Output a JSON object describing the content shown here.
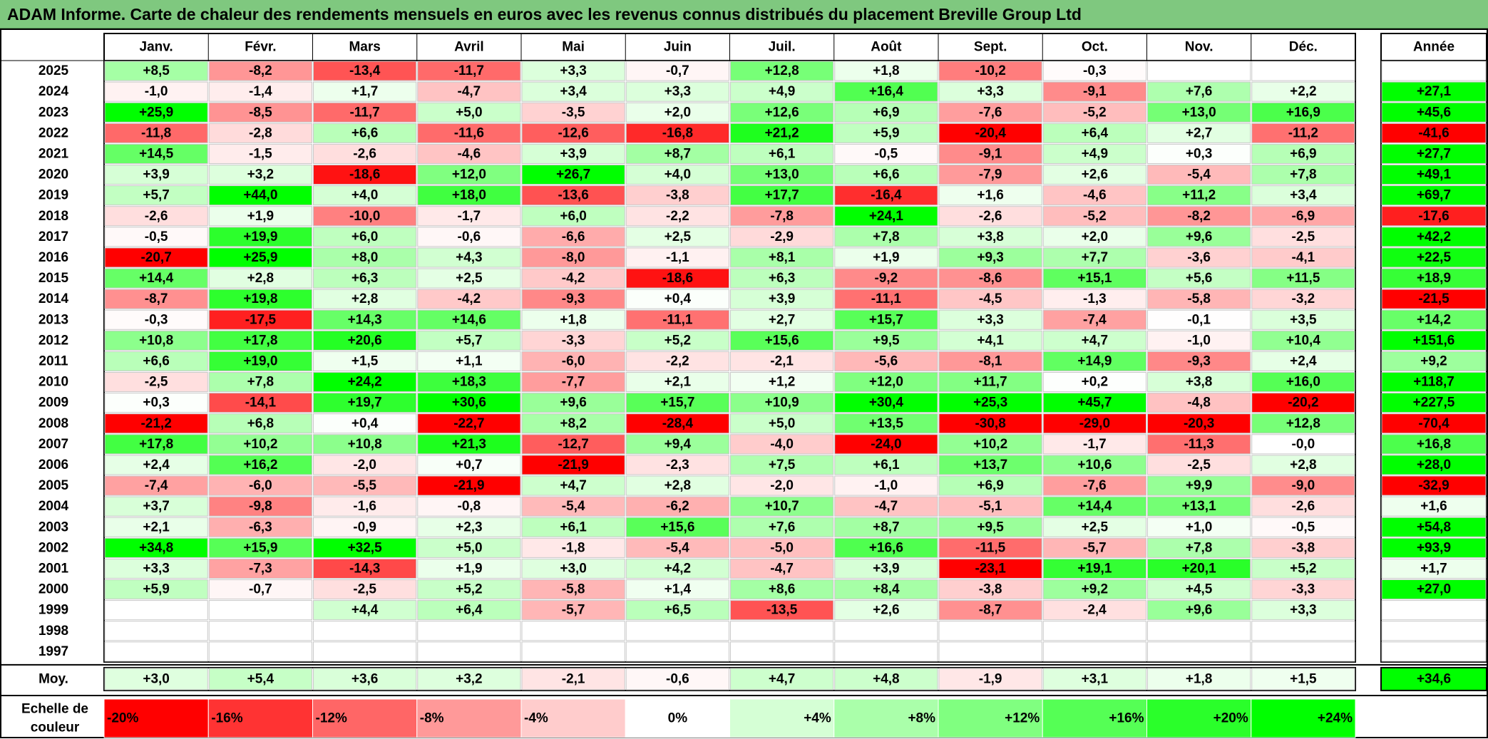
{
  "title": "ADAM Informe. Carte de chaleur des rendements mensuels en euros avec les revenus connus distribués du placement Breville Group Ltd",
  "colors": {
    "title_bar": "#7fc87f",
    "max_green": "#00ff00",
    "max_red": "#ff0000",
    "neutral": "#ffffff"
  },
  "chart_data": {
    "type": "heatmap",
    "color_scale_min": -20,
    "color_scale_max": 24,
    "months": [
      "Janv.",
      "Févr.",
      "Mars",
      "Avril",
      "Mai",
      "Juin",
      "Juil.",
      "Août",
      "Sept.",
      "Oct.",
      "Nov.",
      "Déc."
    ],
    "year_header": "Année",
    "rows": [
      {
        "year": "2025",
        "values": [
          "+8,5",
          "-8,2",
          "-13,4",
          "-11,7",
          "+3,3",
          "-0,7",
          "+12,8",
          "+1,8",
          "-10,2",
          "-0,3",
          "",
          ""
        ],
        "annual": ""
      },
      {
        "year": "2024",
        "values": [
          "-1,0",
          "-1,4",
          "+1,7",
          "-4,7",
          "+3,4",
          "+3,3",
          "+4,9",
          "+16,4",
          "+3,3",
          "-9,1",
          "+7,6",
          "+2,2"
        ],
        "annual": "+27,1"
      },
      {
        "year": "2023",
        "values": [
          "+25,9",
          "-8,5",
          "-11,7",
          "+5,0",
          "-3,5",
          "+2,0",
          "+12,6",
          "+6,9",
          "-7,6",
          "-5,2",
          "+13,0",
          "+16,9"
        ],
        "annual": "+45,6"
      },
      {
        "year": "2022",
        "values": [
          "-11,8",
          "-2,8",
          "+6,6",
          "-11,6",
          "-12,6",
          "-16,8",
          "+21,2",
          "+5,9",
          "-20,4",
          "+6,4",
          "+2,7",
          "-11,2"
        ],
        "annual": "-41,6"
      },
      {
        "year": "2021",
        "values": [
          "+14,5",
          "-1,5",
          "-2,6",
          "-4,6",
          "+3,9",
          "+8,7",
          "+6,1",
          "-0,5",
          "-9,1",
          "+4,9",
          "+0,3",
          "+6,9"
        ],
        "annual": "+27,7"
      },
      {
        "year": "2020",
        "values": [
          "+3,9",
          "+3,2",
          "-18,6",
          "+12,0",
          "+26,7",
          "+4,0",
          "+13,0",
          "+6,6",
          "-7,9",
          "+2,6",
          "-5,4",
          "+7,8"
        ],
        "annual": "+49,1"
      },
      {
        "year": "2019",
        "values": [
          "+5,7",
          "+44,0",
          "+4,0",
          "+18,0",
          "-13,6",
          "-3,8",
          "+17,7",
          "-16,4",
          "+1,6",
          "-4,6",
          "+11,2",
          "+3,4"
        ],
        "annual": "+69,7"
      },
      {
        "year": "2018",
        "values": [
          "-2,6",
          "+1,9",
          "-10,0",
          "-1,7",
          "+6,0",
          "-2,2",
          "-7,8",
          "+24,1",
          "-2,6",
          "-5,2",
          "-8,2",
          "-6,9"
        ],
        "annual": "-17,6"
      },
      {
        "year": "2017",
        "values": [
          "-0,5",
          "+19,9",
          "+6,0",
          "-0,6",
          "-6,6",
          "+2,5",
          "-2,9",
          "+7,8",
          "+3,8",
          "+2,0",
          "+9,6",
          "-2,5"
        ],
        "annual": "+42,2"
      },
      {
        "year": "2016",
        "values": [
          "-20,7",
          "+25,9",
          "+8,0",
          "+4,3",
          "-8,0",
          "-1,1",
          "+8,1",
          "+1,9",
          "+9,3",
          "+7,7",
          "-3,6",
          "-4,1"
        ],
        "annual": "+22,5"
      },
      {
        "year": "2015",
        "values": [
          "+14,4",
          "+2,8",
          "+6,3",
          "+2,5",
          "-4,2",
          "-18,6",
          "+6,3",
          "-9,2",
          "-8,6",
          "+15,1",
          "+5,6",
          "+11,5"
        ],
        "annual": "+18,9"
      },
      {
        "year": "2014",
        "values": [
          "-8,7",
          "+19,8",
          "+2,8",
          "-4,2",
          "-9,3",
          "+0,4",
          "+3,9",
          "-11,1",
          "-4,5",
          "-1,3",
          "-5,8",
          "-3,2"
        ],
        "annual": "-21,5"
      },
      {
        "year": "2013",
        "values": [
          "-0,3",
          "-17,5",
          "+14,3",
          "+14,6",
          "+1,8",
          "-11,1",
          "+2,7",
          "+15,7",
          "+3,3",
          "-7,4",
          "-0,1",
          "+3,5"
        ],
        "annual": "+14,2"
      },
      {
        "year": "2012",
        "values": [
          "+10,8",
          "+17,8",
          "+20,6",
          "+5,7",
          "-3,3",
          "+5,2",
          "+15,6",
          "+9,5",
          "+4,1",
          "+4,7",
          "-1,0",
          "+10,4"
        ],
        "annual": "+151,6"
      },
      {
        "year": "2011",
        "values": [
          "+6,6",
          "+19,0",
          "+1,5",
          "+1,1",
          "-6,0",
          "-2,2",
          "-2,1",
          "-5,6",
          "-8,1",
          "+14,9",
          "-9,3",
          "+2,4"
        ],
        "annual": "+9,2"
      },
      {
        "year": "2010",
        "values": [
          "-2,5",
          "+7,8",
          "+24,2",
          "+18,3",
          "-7,7",
          "+2,1",
          "+1,2",
          "+12,0",
          "+11,7",
          "+0,2",
          "+3,8",
          "+16,0"
        ],
        "annual": "+118,7"
      },
      {
        "year": "2009",
        "values": [
          "+0,3",
          "-14,1",
          "+19,7",
          "+30,6",
          "+9,6",
          "+15,7",
          "+10,9",
          "+30,4",
          "+25,3",
          "+45,7",
          "-4,8",
          "-20,2"
        ],
        "annual": "+227,5"
      },
      {
        "year": "2008",
        "values": [
          "-21,2",
          "+6,8",
          "+0,4",
          "-22,7",
          "+8,2",
          "-28,4",
          "+5,0",
          "+13,5",
          "-30,8",
          "-29,0",
          "-20,3",
          "+12,8"
        ],
        "annual": "-70,4"
      },
      {
        "year": "2007",
        "values": [
          "+17,8",
          "+10,2",
          "+10,8",
          "+21,3",
          "-12,7",
          "+9,4",
          "-4,0",
          "-24,0",
          "+10,2",
          "-1,7",
          "-11,3",
          "-0,0"
        ],
        "annual": "+16,8"
      },
      {
        "year": "2006",
        "values": [
          "+2,4",
          "+16,2",
          "-2,0",
          "+0,7",
          "-21,9",
          "-2,3",
          "+7,5",
          "+6,1",
          "+13,7",
          "+10,6",
          "-2,5",
          "+2,8"
        ],
        "annual": "+28,0"
      },
      {
        "year": "2005",
        "values": [
          "-7,4",
          "-6,0",
          "-5,5",
          "-21,9",
          "+4,7",
          "+2,8",
          "-2,0",
          "-1,0",
          "+6,9",
          "-7,6",
          "+9,9",
          "-9,0"
        ],
        "annual": "-32,9"
      },
      {
        "year": "2004",
        "values": [
          "+3,7",
          "-9,8",
          "-1,6",
          "-0,8",
          "-5,4",
          "-6,2",
          "+10,7",
          "-4,7",
          "-5,1",
          "+14,4",
          "+13,1",
          "-2,6"
        ],
        "annual": "+1,6"
      },
      {
        "year": "2003",
        "values": [
          "+2,1",
          "-6,3",
          "-0,9",
          "+2,3",
          "+6,1",
          "+15,6",
          "+7,6",
          "+8,7",
          "+9,5",
          "+2,5",
          "+1,0",
          "-0,5"
        ],
        "annual": "+54,8"
      },
      {
        "year": "2002",
        "values": [
          "+34,8",
          "+15,9",
          "+32,5",
          "+5,0",
          "-1,8",
          "-5,4",
          "-5,0",
          "+16,6",
          "-11,5",
          "-5,7",
          "+7,8",
          "-3,8"
        ],
        "annual": "+93,9"
      },
      {
        "year": "2001",
        "values": [
          "+3,3",
          "-7,3",
          "-14,3",
          "+1,9",
          "+3,0",
          "+4,2",
          "-4,7",
          "+3,9",
          "-23,1",
          "+19,1",
          "+20,1",
          "+5,2"
        ],
        "annual": "+1,7"
      },
      {
        "year": "2000",
        "values": [
          "+5,9",
          "-0,7",
          "-2,5",
          "+5,2",
          "-5,8",
          "+1,4",
          "+8,6",
          "+8,4",
          "-3,8",
          "+9,2",
          "+4,5",
          "-3,3"
        ],
        "annual": "+27,0"
      },
      {
        "year": "1999",
        "values": [
          "",
          "",
          "+4,4",
          "+6,4",
          "-5,7",
          "+6,5",
          "-13,5",
          "+2,6",
          "-8,7",
          "-2,4",
          "+9,6",
          "+3,3"
        ],
        "annual": ""
      },
      {
        "year": "1998",
        "values": [
          "",
          "",
          "",
          "",
          "",
          "",
          "",
          "",
          "",
          "",
          "",
          ""
        ],
        "annual": ""
      },
      {
        "year": "1997",
        "values": [
          "",
          "",
          "",
          "",
          "",
          "",
          "",
          "",
          "",
          "",
          "",
          ""
        ],
        "annual": ""
      }
    ],
    "average": {
      "label": "Moy.",
      "values": [
        "+3,0",
        "+5,4",
        "+3,6",
        "+3,2",
        "-2,1",
        "-0,6",
        "+4,7",
        "+4,8",
        "-1,9",
        "+3,1",
        "+1,8",
        "+1,5"
      ],
      "annual": "+34,6"
    },
    "scale": {
      "label_line1": "Echelle de",
      "label_line2": "couleur",
      "steps": [
        {
          "label": "-20%",
          "value": -20
        },
        {
          "label": "-16%",
          "value": -16
        },
        {
          "label": "-12%",
          "value": -12
        },
        {
          "label": "-8%",
          "value": -8
        },
        {
          "label": "-4%",
          "value": -4
        },
        {
          "label": "0%",
          "value": 0
        },
        {
          "label": "+4%",
          "value": 4
        },
        {
          "label": "+8%",
          "value": 8
        },
        {
          "label": "+12%",
          "value": 12
        },
        {
          "label": "+16%",
          "value": 16
        },
        {
          "label": "+20%",
          "value": 20
        },
        {
          "label": "+24%",
          "value": 24
        }
      ]
    }
  }
}
